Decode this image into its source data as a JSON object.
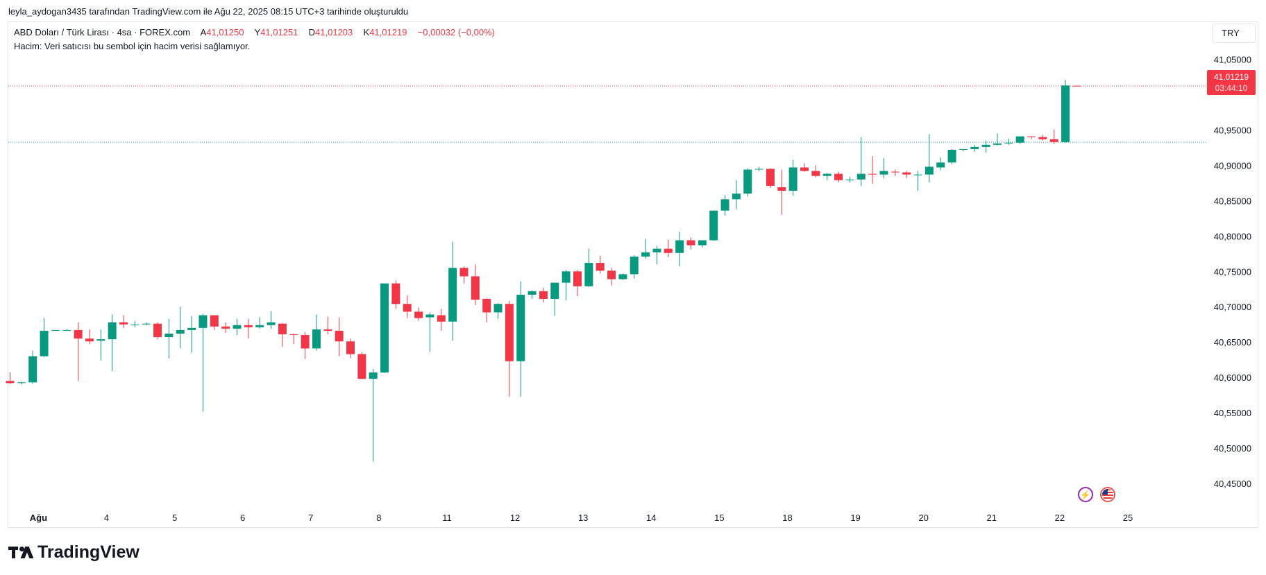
{
  "header": {
    "attribution": "leyla_aydogan3435 tarafından TradingView.com ile Ağu 22, 2025 08:15 UTC+3 tarihinde oluşturuldu"
  },
  "legend": {
    "symbol": "ABD Doları / Türk Lirası · 4sa · FOREX.com",
    "open_label": "A",
    "open": "41,01250",
    "high_label": "Y",
    "high": "41,01251",
    "low_label": "D",
    "low": "41,01203",
    "close_label": "K",
    "close": "41,01219",
    "change": "−0,00032 (−0,00%)",
    "volume_note": "Hacim: Veri satıcısı bu sembol için hacim verisi sağlamıyor."
  },
  "currency": "TRY",
  "price_badge": {
    "price": "41,01219",
    "countdown": "03:44:10"
  },
  "colors": {
    "up": "#089981",
    "down": "#f23645",
    "last_price_line": "#f23645",
    "ref_line": "#089981"
  },
  "icons": [
    "lightning-event-icon",
    "us-flag-icon"
  ],
  "brand": {
    "name": "TradingView"
  },
  "chart_data": {
    "type": "candlestick",
    "y_ticks": [
      "41,05000",
      "40,95000",
      "40,90000",
      "40,85000",
      "40,80000",
      "40,75000",
      "40,70000",
      "40,65000",
      "40,60000",
      "40,55000",
      "40,50000",
      "40,45000"
    ],
    "x_ticks": [
      {
        "label": "Ağu",
        "index": 2.5
      },
      {
        "label": "4",
        "index": 8.5
      },
      {
        "label": "5",
        "index": 14.5
      },
      {
        "label": "6",
        "index": 20.5
      },
      {
        "label": "7",
        "index": 26.5
      },
      {
        "label": "8",
        "index": 32.5
      },
      {
        "label": "11",
        "index": 38.5
      },
      {
        "label": "12",
        "index": 44.5
      },
      {
        "label": "13",
        "index": 50.5
      },
      {
        "label": "14",
        "index": 56.5
      },
      {
        "label": "15",
        "index": 62.5
      },
      {
        "label": "18",
        "index": 68.5
      },
      {
        "label": "19",
        "index": 74.5
      },
      {
        "label": "20",
        "index": 80.5
      },
      {
        "label": "21",
        "index": 86.5
      },
      {
        "label": "22",
        "index": 92.5
      },
      {
        "label": "25",
        "index": 98.5
      }
    ],
    "ylim": [
      40.4275,
      41.0652
    ],
    "last_price": 41.01219,
    "reference_price": 40.9327,
    "candles": [
      [
        40.595,
        40.607,
        40.591,
        40.592
      ],
      [
        40.592,
        40.594,
        40.59,
        40.593
      ],
      [
        40.593,
        40.638,
        40.591,
        40.63
      ],
      [
        40.63,
        40.684,
        40.629,
        40.666
      ],
      [
        40.666,
        40.667,
        40.666,
        40.667
      ],
      [
        40.667,
        40.668,
        40.666,
        40.667
      ],
      [
        40.667,
        40.678,
        40.595,
        40.655
      ],
      [
        40.655,
        40.668,
        40.647,
        40.651
      ],
      [
        40.652,
        40.668,
        40.624,
        40.654
      ],
      [
        40.654,
        40.689,
        40.609,
        40.678
      ],
      [
        40.678,
        40.688,
        40.67,
        40.675
      ],
      [
        40.675,
        40.68,
        40.671,
        40.675
      ],
      [
        40.675,
        40.678,
        40.674,
        40.676
      ],
      [
        40.676,
        40.678,
        40.654,
        40.657
      ],
      [
        40.657,
        40.683,
        40.627,
        40.662
      ],
      [
        40.662,
        40.7,
        40.641,
        40.667
      ],
      [
        40.667,
        40.687,
        40.635,
        40.67
      ],
      [
        40.67,
        40.69,
        40.552,
        40.688
      ],
      [
        40.688,
        40.688,
        40.667,
        40.672
      ],
      [
        40.672,
        40.678,
        40.663,
        40.669
      ],
      [
        40.669,
        40.683,
        40.66,
        40.674
      ],
      [
        40.674,
        40.683,
        40.655,
        40.671
      ],
      [
        40.671,
        40.685,
        40.669,
        40.674
      ],
      [
        40.674,
        40.694,
        40.669,
        40.678
      ],
      [
        40.676,
        40.677,
        40.643,
        40.661
      ],
      [
        40.661,
        40.662,
        40.647,
        40.66
      ],
      [
        40.66,
        40.664,
        40.626,
        40.641
      ],
      [
        40.641,
        40.689,
        40.638,
        40.668
      ],
      [
        40.668,
        40.686,
        40.661,
        40.666
      ],
      [
        40.666,
        40.685,
        40.63,
        40.651
      ],
      [
        40.651,
        40.655,
        40.627,
        40.633
      ],
      [
        40.633,
        40.636,
        40.598,
        40.598
      ],
      [
        40.598,
        40.612,
        40.481,
        40.607
      ],
      [
        40.607,
        40.733,
        40.606,
        40.733
      ],
      [
        40.733,
        40.737,
        40.697,
        40.704
      ],
      [
        40.704,
        40.716,
        40.684,
        40.693
      ],
      [
        40.693,
        40.699,
        40.68,
        40.684
      ],
      [
        40.685,
        40.692,
        40.636,
        40.689
      ],
      [
        40.688,
        40.697,
        40.666,
        40.679
      ],
      [
        40.679,
        40.792,
        40.652,
        40.755
      ],
      [
        40.755,
        40.757,
        40.733,
        40.743
      ],
      [
        40.743,
        40.76,
        40.702,
        40.71
      ],
      [
        40.711,
        40.712,
        40.678,
        40.692
      ],
      [
        40.692,
        40.705,
        40.683,
        40.704
      ],
      [
        40.704,
        40.708,
        40.573,
        40.623
      ],
      [
        40.623,
        40.736,
        40.573,
        40.717
      ],
      [
        40.717,
        40.723,
        40.711,
        40.722
      ],
      [
        40.722,
        40.727,
        40.706,
        40.711
      ],
      [
        40.711,
        40.73,
        40.687,
        40.734
      ],
      [
        40.734,
        40.752,
        40.709,
        40.75
      ],
      [
        40.75,
        40.752,
        40.715,
        40.729
      ],
      [
        40.729,
        40.782,
        40.728,
        40.762
      ],
      [
        40.762,
        40.772,
        40.747,
        40.751
      ],
      [
        40.751,
        40.755,
        40.73,
        40.739
      ],
      [
        40.739,
        40.747,
        40.738,
        40.746
      ],
      [
        40.746,
        40.773,
        40.74,
        40.771
      ],
      [
        40.771,
        40.796,
        40.768,
        40.777
      ],
      [
        40.777,
        40.786,
        40.76,
        40.782
      ],
      [
        40.782,
        40.795,
        40.77,
        40.776
      ],
      [
        40.776,
        40.806,
        40.757,
        40.794
      ],
      [
        40.794,
        40.798,
        40.781,
        40.787
      ],
      [
        40.787,
        40.793,
        40.784,
        40.794
      ],
      [
        40.794,
        40.836,
        40.793,
        40.836
      ],
      [
        40.836,
        40.858,
        40.829,
        40.852
      ],
      [
        40.852,
        40.879,
        40.838,
        40.86
      ],
      [
        40.86,
        40.896,
        40.856,
        40.894
      ],
      [
        40.894,
        40.898,
        40.892,
        40.895
      ],
      [
        40.895,
        40.896,
        40.868,
        40.871
      ],
      [
        40.869,
        40.894,
        40.83,
        40.864
      ],
      [
        40.864,
        40.908,
        40.857,
        40.897
      ],
      [
        40.897,
        40.903,
        40.891,
        40.892
      ],
      [
        40.892,
        40.9,
        40.883,
        40.885
      ],
      [
        40.885,
        40.889,
        40.879,
        40.888
      ],
      [
        40.888,
        40.891,
        40.876,
        40.879
      ],
      [
        40.879,
        40.884,
        40.876,
        40.88
      ],
      [
        40.88,
        40.94,
        40.871,
        40.888
      ],
      [
        40.888,
        40.913,
        40.874,
        40.887
      ],
      [
        40.887,
        40.91,
        40.882,
        40.892
      ],
      [
        40.891,
        40.894,
        40.885,
        40.89
      ],
      [
        40.89,
        40.892,
        40.882,
        40.887
      ],
      [
        40.887,
        40.892,
        40.864,
        40.887
      ],
      [
        40.887,
        40.944,
        40.876,
        40.898
      ],
      [
        40.897,
        40.911,
        40.893,
        40.904
      ],
      [
        40.904,
        40.923,
        40.902,
        40.922
      ],
      [
        40.922,
        40.923,
        40.92,
        40.923
      ],
      [
        40.923,
        40.929,
        40.919,
        40.926
      ],
      [
        40.926,
        40.935,
        40.918,
        40.929
      ],
      [
        40.929,
        40.945,
        40.928,
        40.931
      ],
      [
        40.931,
        40.938,
        40.929,
        40.932
      ],
      [
        40.932,
        40.94,
        40.93,
        40.941
      ],
      [
        40.941,
        40.941,
        40.937,
        40.94
      ],
      [
        40.94,
        40.943,
        40.935,
        40.937
      ],
      [
        40.937,
        40.951,
        40.93,
        40.933
      ],
      [
        40.933,
        41.021,
        40.932,
        41.013
      ],
      [
        41.0125,
        41.01251,
        41.01203,
        41.01219
      ]
    ]
  }
}
